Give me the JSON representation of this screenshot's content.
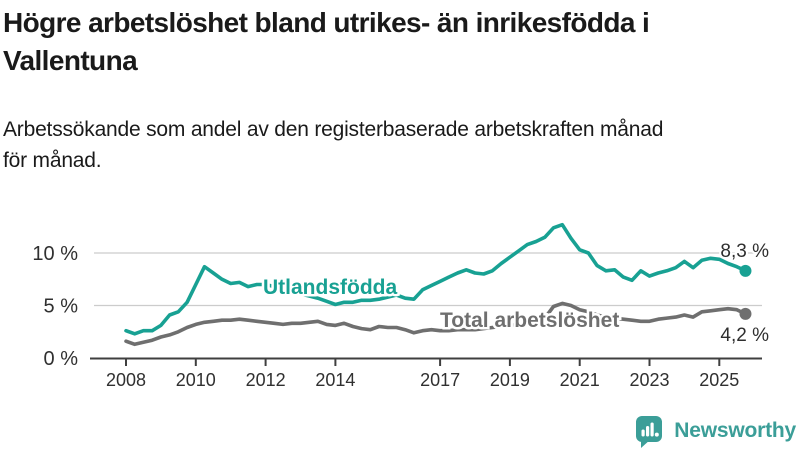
{
  "header": {
    "title_lines": [
      "Högre arbetslöshet bland utrikes- än inrikesfödda i",
      "Vallentuna"
    ],
    "subtitle_lines": [
      "Arbetssökande som andel av den registerbaserade arbetskraften månad",
      "för månad."
    ]
  },
  "chart_data": {
    "type": "line",
    "title": "Högre arbetslöshet bland utrikes- än inrikesfödda i Vallentuna",
    "subtitle": "Arbetssökande som andel av den registerbaserade arbetskraften månad för månad.",
    "xlabel": "",
    "ylabel": "",
    "x_range": [
      2008,
      2025.9
    ],
    "ylim": [
      0,
      13
    ],
    "grid": "horizontal-only",
    "gridline_color": "#cccccc",
    "axis_color": "#3f3f3f",
    "tick_label_color": "#303030",
    "x_tick_years": [
      2008,
      2010,
      2012,
      2014,
      2017,
      2019,
      2021,
      2023,
      2025
    ],
    "x_tick_labels": [
      "2008",
      "2010",
      "2012",
      "2014",
      "2017",
      "2019",
      "2021",
      "2023",
      "2025"
    ],
    "y_ticks": [
      {
        "value": 0,
        "label": "0 %"
      },
      {
        "value": 5,
        "label": "5 %"
      },
      {
        "value": 10,
        "label": "10 %"
      }
    ],
    "x_start": 2008.0,
    "x_step": 0.25,
    "series": [
      {
        "name": "Utlandsfödda",
        "color": "#18a193",
        "end_label": "8,3 %",
        "end_value": 8.3,
        "values": [
          2.6,
          2.3,
          2.6,
          2.6,
          3.1,
          4.1,
          4.4,
          5.3,
          7.0,
          8.7,
          8.1,
          7.5,
          7.1,
          7.2,
          6.8,
          7.0,
          7.0,
          6.8,
          6.5,
          6.3,
          6.1,
          5.9,
          5.7,
          5.4,
          5.1,
          5.3,
          5.3,
          5.5,
          5.5,
          5.6,
          5.8,
          6.0,
          5.7,
          5.6,
          6.5,
          6.9,
          7.3,
          7.7,
          8.1,
          8.4,
          8.1,
          8.0,
          8.3,
          9.0,
          9.6,
          10.2,
          10.8,
          11.1,
          11.5,
          12.4,
          12.7,
          11.4,
          10.3,
          10.0,
          8.8,
          8.3,
          8.4,
          7.7,
          7.4,
          8.3,
          7.8,
          8.1,
          8.3,
          8.6,
          9.2,
          8.6,
          9.3,
          9.5,
          9.4,
          9.0,
          8.7,
          8.3
        ]
      },
      {
        "name": "Total arbetslöshet",
        "color": "#6f6f6f",
        "end_label": "4,2 %",
        "end_value": 4.2,
        "values": [
          1.6,
          1.3,
          1.5,
          1.7,
          2.0,
          2.2,
          2.5,
          2.9,
          3.2,
          3.4,
          3.5,
          3.6,
          3.6,
          3.7,
          3.6,
          3.5,
          3.4,
          3.3,
          3.2,
          3.3,
          3.3,
          3.4,
          3.5,
          3.2,
          3.1,
          3.3,
          3.0,
          2.8,
          2.7,
          3.0,
          2.9,
          2.9,
          2.7,
          2.4,
          2.6,
          2.7,
          2.6,
          2.6,
          2.7,
          2.7,
          2.7,
          2.8,
          2.9,
          3.0,
          3.1,
          3.2,
          3.3,
          3.5,
          3.8,
          4.9,
          5.2,
          5.0,
          4.6,
          4.4,
          4.1,
          3.9,
          3.8,
          3.7,
          3.6,
          3.5,
          3.5,
          3.7,
          3.8,
          3.9,
          4.1,
          3.9,
          4.4,
          4.5,
          4.6,
          4.7,
          4.6,
          4.2
        ]
      }
    ],
    "legend_position": "inline-labels-on-lines",
    "end_label_color": "#2e2e2e"
  },
  "logo": {
    "name": "Newsworthy",
    "icon": "newsworthy-speech-bubble-bar-chart-icon",
    "color": "#3b9e98"
  }
}
